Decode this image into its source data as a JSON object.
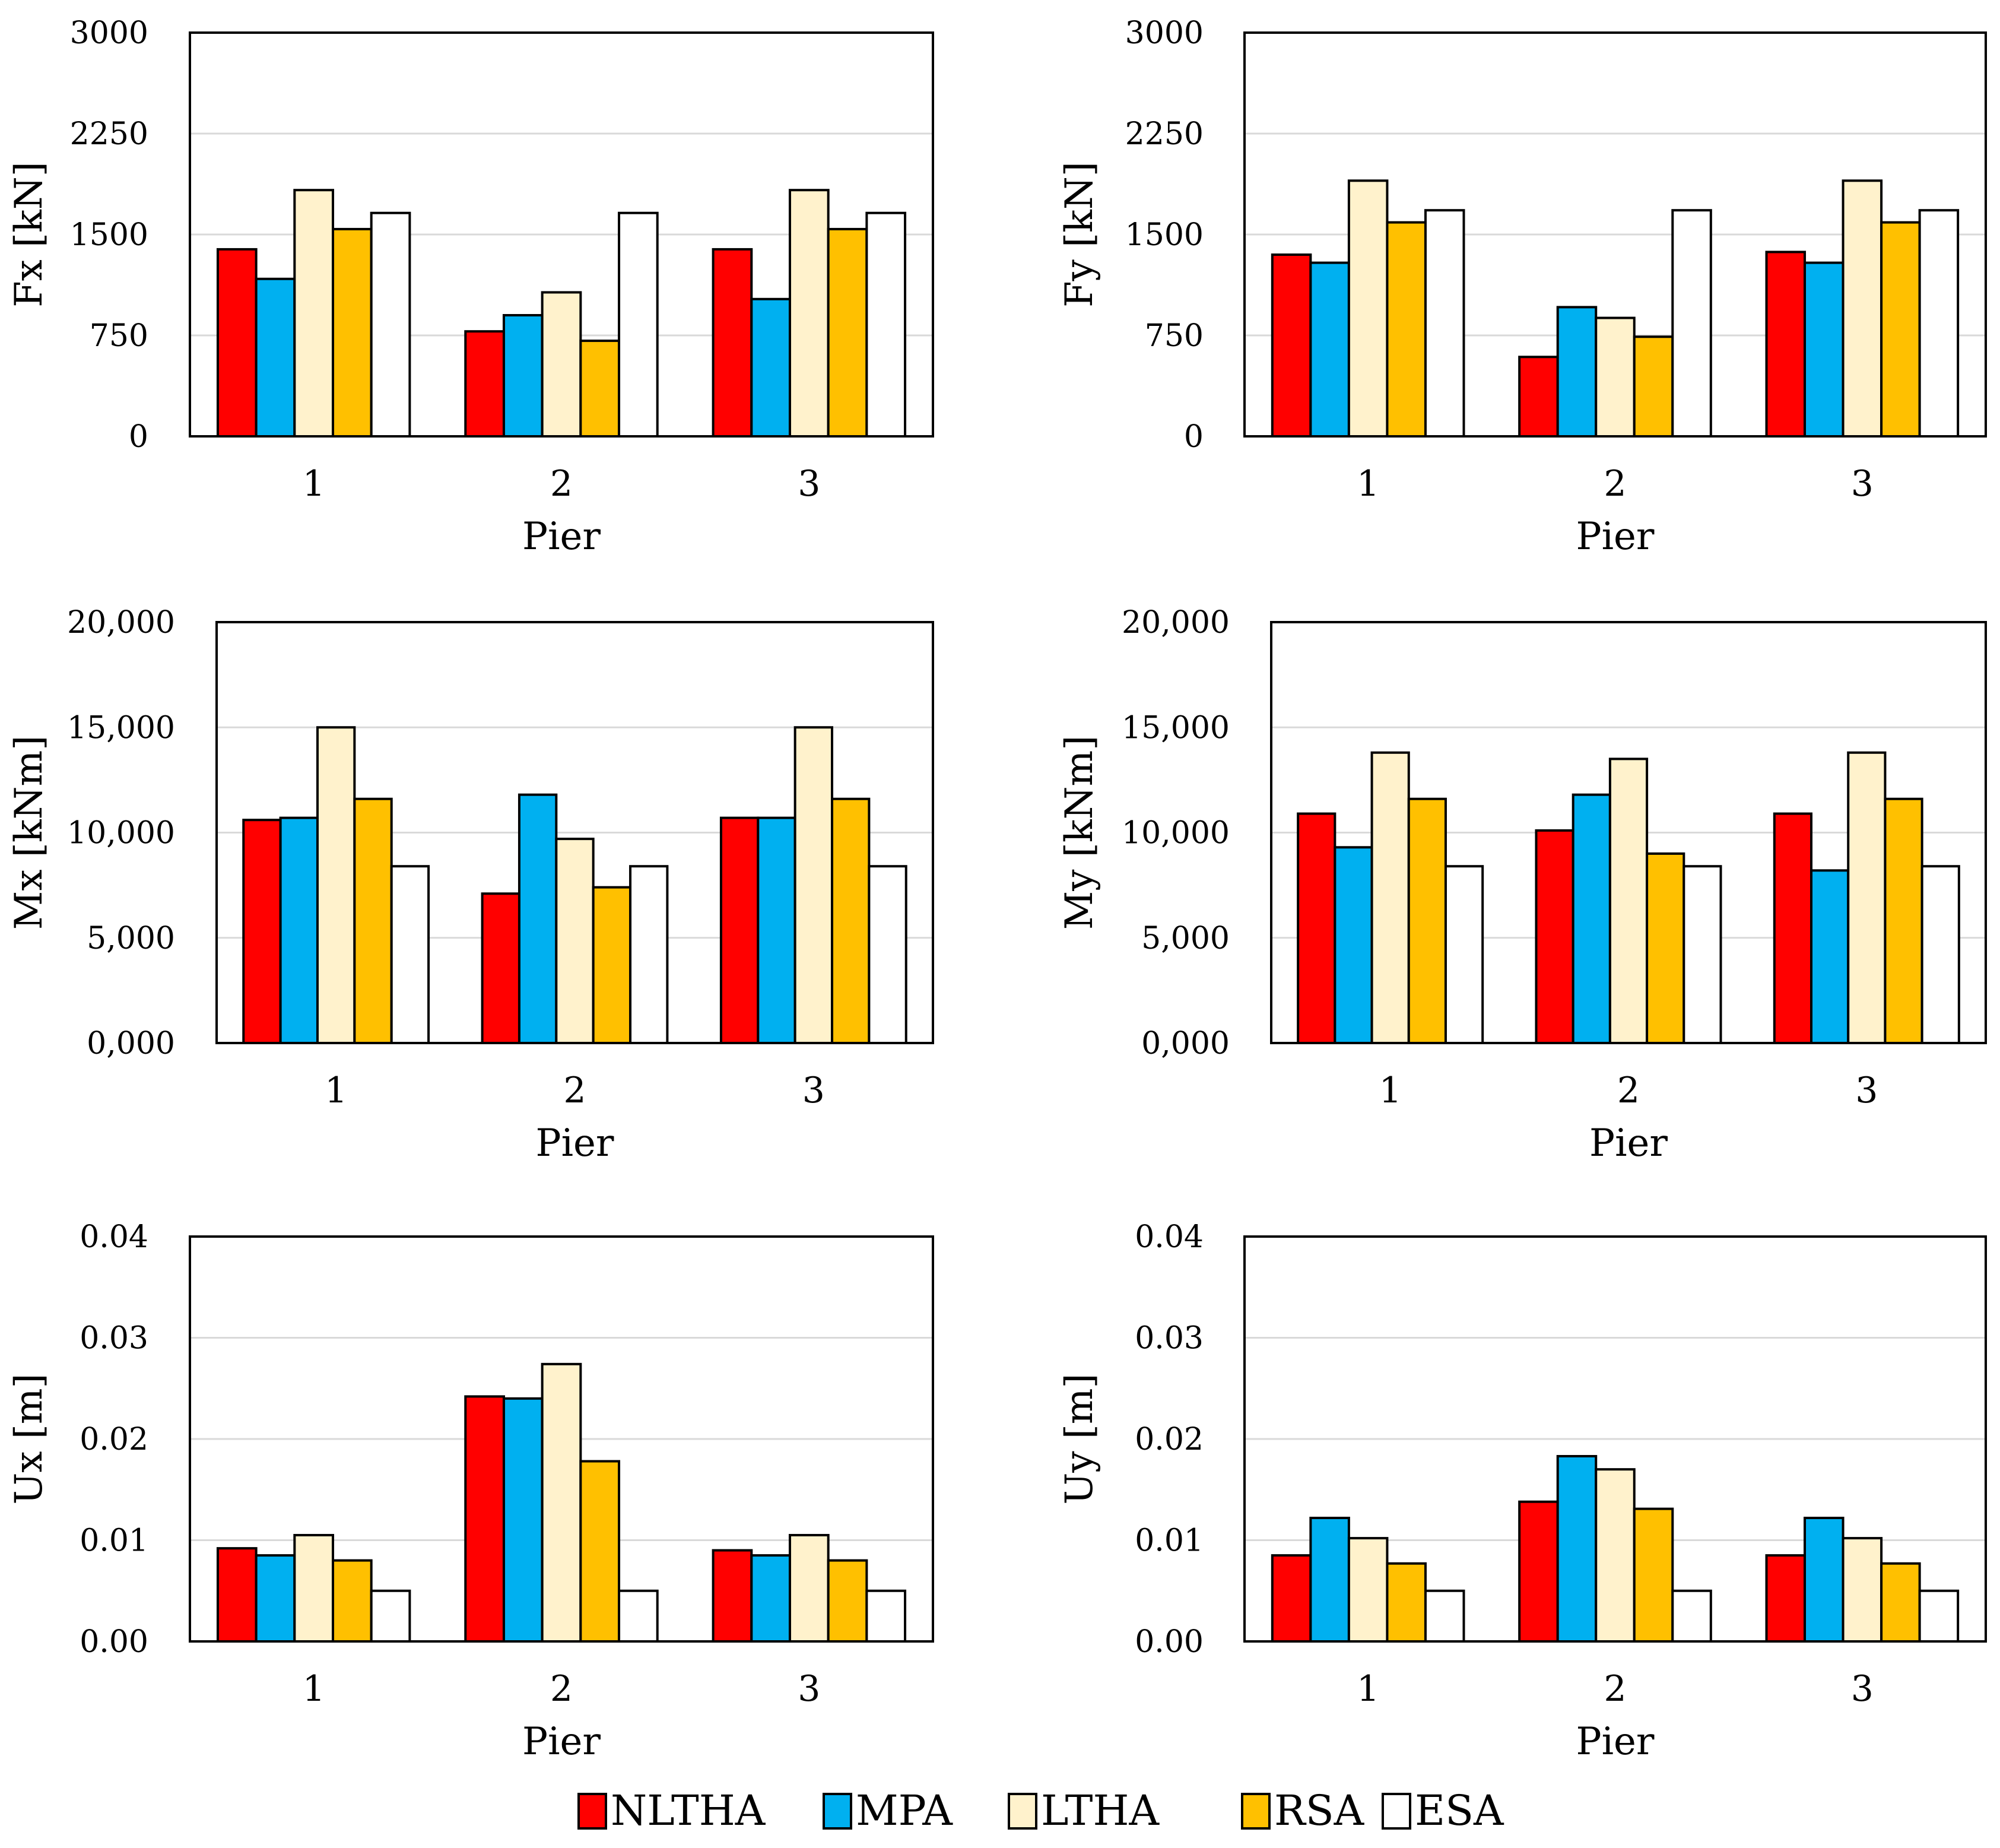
{
  "colors": {
    "NLTHA": "#ff0000",
    "MPA": "#00b0f0",
    "LTHA": "#fff2cc",
    "RSA": "#ffc000",
    "ESA": "#ffffff",
    "grid": "#d9d9d9",
    "frame": "#000000"
  },
  "legend": [
    "NLTHA",
    "MPA",
    "LTHA",
    "RSA",
    "ESA"
  ],
  "chart_data": [
    {
      "type": "bar",
      "title": "",
      "xlabel": "Pier",
      "ylabel": "Fx [kN]",
      "categories": [
        "1",
        "2",
        "3"
      ],
      "ylim": [
        0,
        3000
      ],
      "yticks": [
        0,
        750,
        1500,
        2250,
        3000
      ],
      "ytick_labels": [
        "0",
        "750",
        "1500",
        "2250",
        "3000"
      ],
      "grid": true,
      "series": [
        {
          "name": "NLTHA",
          "values": [
            1390,
            780,
            1390
          ]
        },
        {
          "name": "MPA",
          "values": [
            1170,
            900,
            1020
          ]
        },
        {
          "name": "LTHA",
          "values": [
            1830,
            1070,
            1830
          ]
        },
        {
          "name": "RSA",
          "values": [
            1540,
            710,
            1540
          ]
        },
        {
          "name": "ESA",
          "values": [
            1660,
            1660,
            1660
          ]
        }
      ]
    },
    {
      "type": "bar",
      "title": "",
      "xlabel": "Pier",
      "ylabel": "Fy [kN]",
      "categories": [
        "1",
        "2",
        "3"
      ],
      "ylim": [
        0,
        3000
      ],
      "yticks": [
        0,
        750,
        1500,
        2250,
        3000
      ],
      "ytick_labels": [
        "0",
        "750",
        "1500",
        "2250",
        "3000"
      ],
      "grid": true,
      "series": [
        {
          "name": "NLTHA",
          "values": [
            1350,
            590,
            1370
          ]
        },
        {
          "name": "MPA",
          "values": [
            1290,
            960,
            1290
          ]
        },
        {
          "name": "LTHA",
          "values": [
            1900,
            880,
            1900
          ]
        },
        {
          "name": "RSA",
          "values": [
            1590,
            740,
            1590
          ]
        },
        {
          "name": "ESA",
          "values": [
            1680,
            1680,
            1680
          ]
        }
      ]
    },
    {
      "type": "bar",
      "title": "",
      "xlabel": "Pier",
      "ylabel": "Mx [kNm]",
      "categories": [
        "1",
        "2",
        "3"
      ],
      "ylim": [
        0,
        20000
      ],
      "yticks": [
        0,
        5000,
        10000,
        15000,
        20000
      ],
      "ytick_labels": [
        "0,000",
        "5,000",
        "10,000",
        "15,000",
        "20,000"
      ],
      "grid": true,
      "series": [
        {
          "name": "NLTHA",
          "values": [
            10600,
            7100,
            10700
          ]
        },
        {
          "name": "MPA",
          "values": [
            10700,
            11800,
            10700
          ]
        },
        {
          "name": "LTHA",
          "values": [
            15000,
            9700,
            15000
          ]
        },
        {
          "name": "RSA",
          "values": [
            11600,
            7400,
            11600
          ]
        },
        {
          "name": "ESA",
          "values": [
            8400,
            8400,
            8400
          ]
        }
      ]
    },
    {
      "type": "bar",
      "title": "",
      "xlabel": "Pier",
      "ylabel": "My [kNm]",
      "categories": [
        "1",
        "2",
        "3"
      ],
      "ylim": [
        0,
        20000
      ],
      "yticks": [
        0,
        5000,
        10000,
        15000,
        20000
      ],
      "ytick_labels": [
        "0,000",
        "5,000",
        "10,000",
        "15,000",
        "20,000"
      ],
      "grid": true,
      "series": [
        {
          "name": "NLTHA",
          "values": [
            10900,
            10100,
            10900
          ]
        },
        {
          "name": "MPA",
          "values": [
            9300,
            11800,
            8200
          ]
        },
        {
          "name": "LTHA",
          "values": [
            13800,
            13500,
            13800
          ]
        },
        {
          "name": "RSA",
          "values": [
            11600,
            9000,
            11600
          ]
        },
        {
          "name": "ESA",
          "values": [
            8400,
            8400,
            8400
          ]
        }
      ]
    },
    {
      "type": "bar",
      "title": "",
      "xlabel": "Pier",
      "ylabel": "Ux [m]",
      "categories": [
        "1",
        "2",
        "3"
      ],
      "ylim": [
        0,
        0.04
      ],
      "yticks": [
        0,
        0.01,
        0.02,
        0.03,
        0.04
      ],
      "ytick_labels": [
        "0.00",
        "0.01",
        "0.02",
        "0.03",
        "0.04"
      ],
      "grid": true,
      "series": [
        {
          "name": "NLTHA",
          "values": [
            0.0092,
            0.0242,
            0.009
          ]
        },
        {
          "name": "MPA",
          "values": [
            0.0085,
            0.024,
            0.0085
          ]
        },
        {
          "name": "LTHA",
          "values": [
            0.0105,
            0.0274,
            0.0105
          ]
        },
        {
          "name": "RSA",
          "values": [
            0.008,
            0.0178,
            0.008
          ]
        },
        {
          "name": "ESA",
          "values": [
            0.005,
            0.005,
            0.005
          ]
        }
      ]
    },
    {
      "type": "bar",
      "title": "",
      "xlabel": "Pier",
      "ylabel": "Uy [m]",
      "categories": [
        "1",
        "2",
        "3"
      ],
      "ylim": [
        0,
        0.04
      ],
      "yticks": [
        0,
        0.01,
        0.02,
        0.03,
        0.04
      ],
      "ytick_labels": [
        "0.00",
        "0.01",
        "0.02",
        "0.03",
        "0.04"
      ],
      "grid": true,
      "series": [
        {
          "name": "NLTHA",
          "values": [
            0.0085,
            0.0138,
            0.0085
          ]
        },
        {
          "name": "MPA",
          "values": [
            0.0122,
            0.0183,
            0.0122
          ]
        },
        {
          "name": "LTHA",
          "values": [
            0.0102,
            0.017,
            0.0102
          ]
        },
        {
          "name": "RSA",
          "values": [
            0.0077,
            0.0131,
            0.0077
          ]
        },
        {
          "name": "ESA",
          "values": [
            0.005,
            0.005,
            0.005
          ]
        }
      ]
    }
  ]
}
